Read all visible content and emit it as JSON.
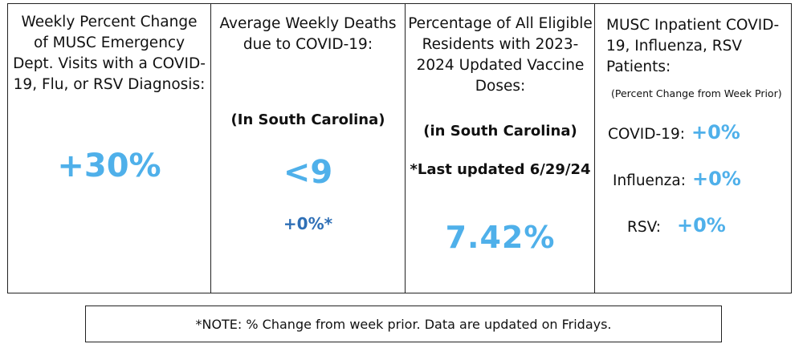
{
  "panels": [
    {
      "header": "Weekly Percent Change of MUSC Emergency Dept. Visits with a COVID-19, Flu, or RSV Diagnosis:",
      "value": "+30%"
    },
    {
      "header": "Average Weekly Deaths due to COVID-19:",
      "subheader": "(In South Carolina)",
      "value": "<9",
      "change": "+0%*"
    },
    {
      "header": "Percentage of All Eligible Residents with 2023-2024 Updated Vaccine Doses:",
      "subheader": "(in South Carolina)",
      "updated": "*Last updated 6/29/24",
      "value": "7.42%"
    },
    {
      "header": "MUSC Inpatient COVID-19, Influenza, RSV Patients:",
      "note": "(Percent Change from Week Prior)",
      "rows": [
        {
          "label": "COVID-19:",
          "value": "+0%"
        },
        {
          "label": "Influenza:",
          "value": "+0%"
        },
        {
          "label": "RSV:",
          "value": "+0%"
        }
      ]
    }
  ],
  "footer": "*NOTE: % Change from week prior. Data are updated on Fridays.",
  "colors": {
    "accent_light_blue": "#4fb0ea",
    "accent_dark_blue": "#2e6fb6",
    "border": "#222222"
  }
}
